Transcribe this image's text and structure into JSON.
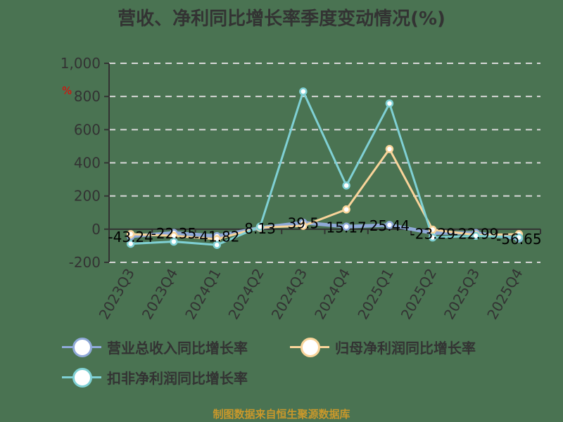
{
  "title": "营收、净利同比增长率季度变动情况(%)",
  "unit_mark": "%",
  "footer": "制图数据来自恒生聚源数据库",
  "colors": {
    "revenue": "#8fa9d8",
    "net_profit": "#f9d49a",
    "deducted_net_profit": "#7fd0d4"
  },
  "legend": [
    {
      "label": "营业总收入同比增长率",
      "color": "#8fa9d8"
    },
    {
      "label": "归母净利润同比增长率",
      "color": "#f9d49a"
    },
    {
      "label": "扣非净利润同比增长率",
      "color": "#7fd0d4"
    }
  ],
  "chart_data": {
    "type": "line",
    "title": "营收、净利同比增长率季度变动情况(%)",
    "xlabel": "",
    "ylabel": "%",
    "ylim": [
      -200,
      1000
    ],
    "yticks": [
      -200,
      0,
      200,
      400,
      600,
      800,
      1000
    ],
    "ytick_labels": [
      "-200",
      "0",
      "200",
      "400",
      "600",
      "800",
      "1,000"
    ],
    "grid": true,
    "legend_position": "bottom",
    "categories": [
      "2023Q3",
      "2023Q4",
      "2024Q1",
      "2024Q2",
      "2024Q3",
      "2024Q4",
      "2025Q1",
      "2025Q2",
      "2025Q3",
      "2025Q4"
    ],
    "series": [
      {
        "name": "营业总收入同比增长率",
        "values": [
          -43.24,
          -22.35,
          -41.82,
          8.13,
          39.5,
          15.17,
          25.44,
          -23.29,
          -22.99,
          -56.65
        ],
        "labeled": true
      },
      {
        "name": "归母净利润同比增长率",
        "values": [
          -30,
          -40,
          -60,
          10,
          20,
          119,
          483,
          -3,
          -35,
          -30
        ]
      },
      {
        "name": "扣非净利润同比增长率",
        "values": [
          -88,
          -75,
          -95,
          15,
          830,
          263,
          758,
          -50,
          -40,
          -50
        ]
      }
    ],
    "data_labels": [
      "-43.24",
      "-22.35",
      "-41.82",
      "8.13",
      "39.5",
      "15.17",
      "25.44",
      "-23.29",
      "-22.99",
      "-56.65"
    ]
  }
}
